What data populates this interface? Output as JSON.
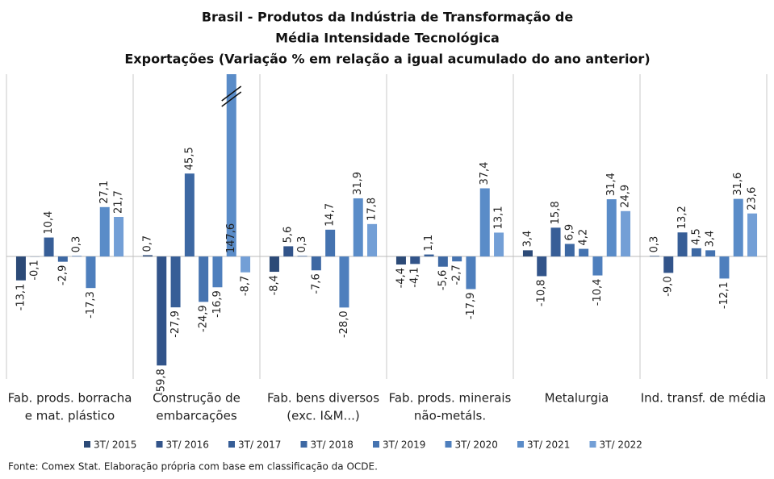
{
  "chart_data": {
    "type": "bar",
    "title": [
      "Brasil - Produtos da Indústria de Transformação de",
      "Média Intensidade Tecnológica"
    ],
    "subtitle": "Exportações (Variação % em relação a igual acumulado do ano anterior)",
    "note": "Fonte: Comex Stat. Elaboração própria com base em classificação da OCDE.",
    "categories": [
      [
        "Fab. prods. borracha",
        "e mat. plástico"
      ],
      [
        "Construção de",
        "embarcações"
      ],
      [
        "Fab. bens diversos",
        "(exc. I&M...)"
      ],
      [
        "Fab. prods. minerais",
        "não-metáls."
      ],
      [
        "Metalurgia"
      ],
      [
        "Ind. transf. de média"
      ]
    ],
    "ylim": [
      -65,
      100
    ],
    "series": [
      {
        "name": "3T/ 2015",
        "color": "#2c4a77",
        "values": [
          -13.1,
          0.7,
          -8.4,
          -4.4,
          3.4,
          0.3
        ],
        "value_labels": [
          "-13,1",
          "0,7",
          "-8,4",
          "-4,4",
          "3,4",
          "0,3"
        ]
      },
      {
        "name": "3T/ 2016",
        "color": "#32548a",
        "values": [
          -0.1,
          -59.8,
          5.6,
          -4.1,
          -10.8,
          -9.0
        ],
        "value_labels": [
          "-0,1",
          "-59,8",
          "5,6",
          "-4,1",
          "-10,8",
          "-9,0"
        ]
      },
      {
        "name": "3T/ 2017",
        "color": "#375e97",
        "values": [
          10.4,
          -27.9,
          0.3,
          1.1,
          15.8,
          13.2
        ],
        "value_labels": [
          "10,4",
          "-27,9",
          "0,3",
          "1,1",
          "15,8",
          "13,2"
        ]
      },
      {
        "name": "3T/ 2018",
        "color": "#3d68a3",
        "values": [
          -2.9,
          45.5,
          -7.6,
          -5.6,
          6.9,
          4.5
        ],
        "value_labels": [
          "-2,9",
          "45,5",
          "-7,6",
          "-5,6",
          "6,9",
          "4,5"
        ]
      },
      {
        "name": "3T/ 2019",
        "color": "#4573b0",
        "values": [
          0.3,
          -24.9,
          14.7,
          -2.7,
          4.2,
          3.4
        ],
        "value_labels": [
          "0,3",
          "-24,9",
          "14,7",
          "-2,7",
          "4,2",
          "3,4"
        ]
      },
      {
        "name": "3T/ 2020",
        "color": "#4e7fbd",
        "values": [
          -17.3,
          -16.9,
          -28.0,
          -17.9,
          -10.4,
          -12.1
        ],
        "value_labels": [
          "-17,3",
          "-16,9",
          "-28,0",
          "-17,9",
          "-10,4",
          "-12,1"
        ]
      },
      {
        "name": "3T/ 2021",
        "color": "#5a8cc8",
        "values": [
          27.1,
          147.6,
          31.9,
          37.4,
          31.4,
          31.6
        ],
        "value_labels": [
          "27,1",
          "147,6",
          "31,9",
          "37,4",
          "31,4",
          "31,6"
        ]
      },
      {
        "name": "3T/ 2022",
        "color": "#739fd6",
        "values": [
          21.7,
          -8.7,
          17.8,
          13.1,
          24.9,
          23.6
        ],
        "value_labels": [
          "21,7",
          "-8,7",
          "17,8",
          "13,1",
          "24,9",
          "23,6"
        ]
      }
    ]
  }
}
